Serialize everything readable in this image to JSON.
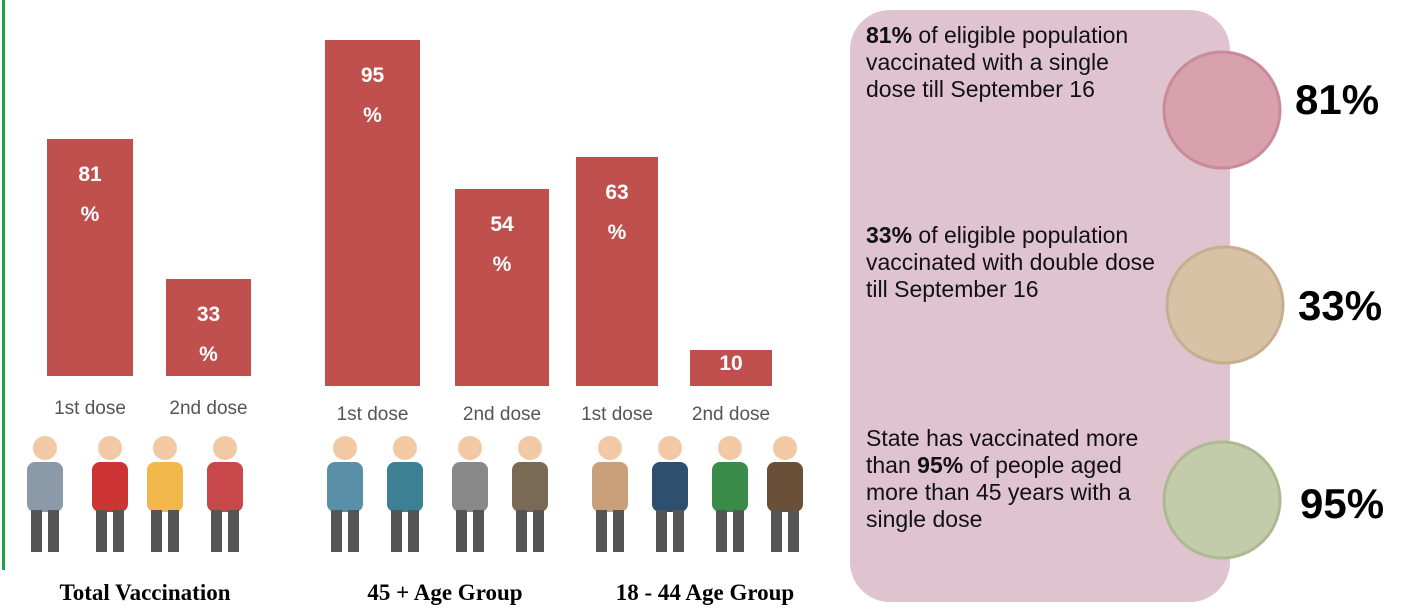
{
  "chart_data": [
    {
      "type": "bar",
      "title": "Total Vaccination",
      "categories": [
        "1st dose",
        "2nd dose"
      ],
      "values": [
        81,
        33
      ],
      "value_labels": [
        "81 %",
        "33 %"
      ],
      "color": "#c0504d",
      "ylim": [
        0,
        100
      ]
    },
    {
      "type": "bar",
      "title": "45 + Age Group",
      "categories": [
        "1st dose",
        "2nd dose"
      ],
      "values": [
        95,
        54
      ],
      "value_labels": [
        "95 %",
        "54 %"
      ],
      "color": "#c0504d",
      "ylim": [
        0,
        100
      ]
    },
    {
      "type": "bar",
      "title": "18 - 44 Age Group",
      "categories": [
        "1st dose",
        "2nd dose"
      ],
      "values": [
        63,
        10
      ],
      "value_labels": [
        "63 %",
        "10"
      ],
      "color": "#c0504d",
      "ylim": [
        0,
        100
      ]
    }
  ],
  "panel": {
    "items": [
      {
        "parts": [
          {
            "bold": true,
            "text": "81%"
          },
          {
            "bold": false,
            "text": " of eligible population vaccinated with a single dose till September 16"
          }
        ],
        "big": "81%"
      },
      {
        "parts": [
          {
            "bold": true,
            "text": "33%"
          },
          {
            "bold": false,
            "text": " of eligible population vaccinated with double dose till September 16"
          }
        ],
        "big": "33%"
      },
      {
        "parts": [
          {
            "bold": false,
            "text": "State has vaccinated more than "
          },
          {
            "bold": true,
            "text": "95%"
          },
          {
            "bold": false,
            "text": " of people aged more than 45 years with a single dose"
          }
        ],
        "big": "95%"
      }
    ]
  }
}
